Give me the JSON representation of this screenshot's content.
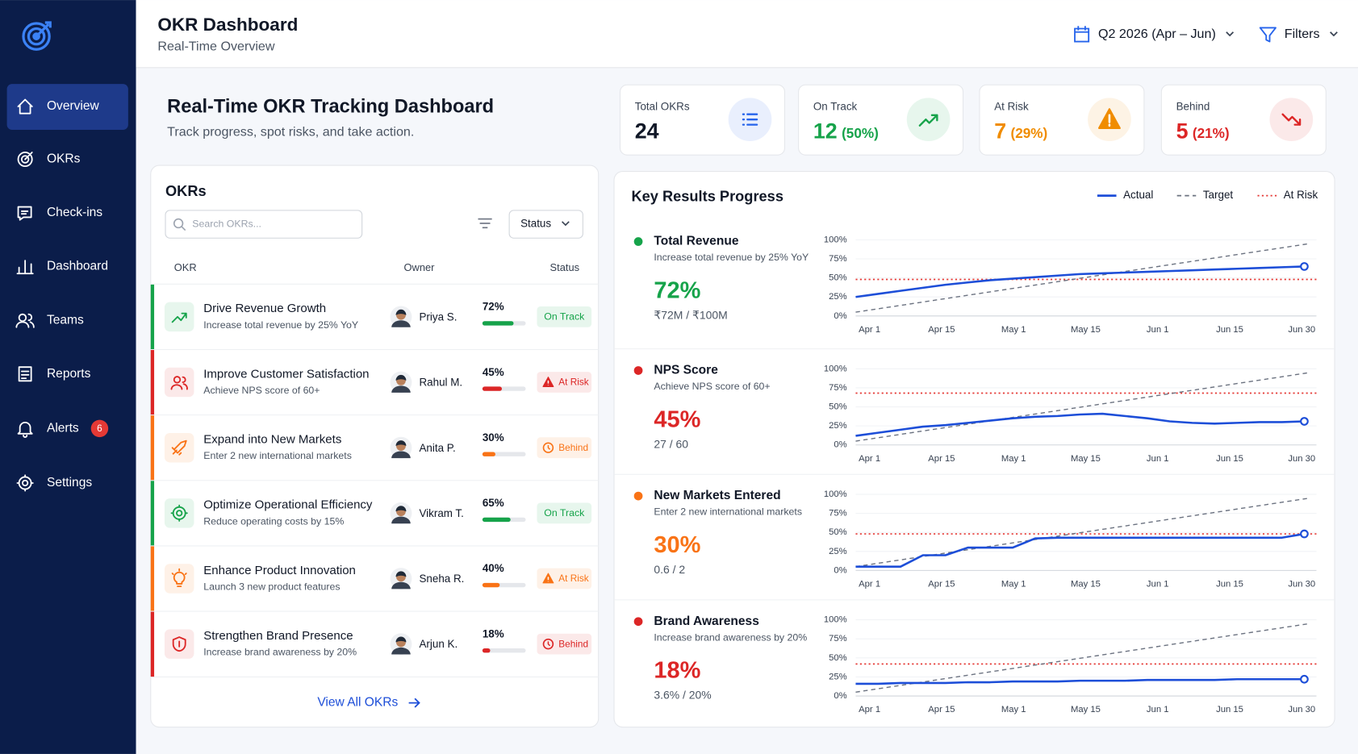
{
  "sidebar": {
    "nav": [
      {
        "label": "Overview"
      },
      {
        "label": "OKRs"
      },
      {
        "label": "Check-ins"
      },
      {
        "label": "Dashboard"
      },
      {
        "label": "Teams"
      },
      {
        "label": "Reports"
      },
      {
        "label": "Alerts",
        "badge": 6
      },
      {
        "label": "Settings"
      }
    ]
  },
  "header": {
    "title": "OKR Dashboard",
    "subtitle": "Real-Time Overview",
    "period": "Q2 2026 (Apr – Jun)",
    "filters": "Filters"
  },
  "hero": {
    "title": "Real-Time OKR Tracking Dashboard",
    "subtitle": "Track progress, spot risks, and take action."
  },
  "kpis": [
    {
      "label": "Total OKRs",
      "value": 24,
      "color": "#2563eb"
    },
    {
      "label": "On Track",
      "value": 12,
      "share": "(50%)",
      "color": "#16a34a"
    },
    {
      "label": "At Risk",
      "value": 7,
      "share": "(29%)",
      "color": "#f08c00"
    },
    {
      "label": "Behind",
      "value": 5,
      "share": "(21%)",
      "color": "#dc2626"
    }
  ],
  "okrs": {
    "title": "OKRs",
    "search_placeholder": "Search OKRs...",
    "status_filter": "Status",
    "columns": [
      "OKR",
      "Owner",
      "Status"
    ],
    "rows": [
      {
        "title": "Drive Revenue Growth",
        "subtitle": "Increase total revenue by 25% YoY",
        "owner": "Priya S.",
        "progress": 72,
        "progress_label": "72%",
        "status": "On Track",
        "color": "#16a34a"
      },
      {
        "title": "Improve Customer Satisfaction",
        "subtitle": "Achieve NPS score of 60+",
        "owner": "Rahul M.",
        "progress": 45,
        "progress_label": "45%",
        "status": "At Risk",
        "color": "#dc2626"
      },
      {
        "title": "Expand into New Markets",
        "subtitle": "Enter 2 new international markets",
        "owner": "Anita P.",
        "progress": 30,
        "progress_label": "30%",
        "status": "Behind",
        "color": "#f97316"
      },
      {
        "title": "Optimize Operational Efficiency",
        "subtitle": "Reduce operating costs by 15%",
        "owner": "Vikram T.",
        "progress": 65,
        "progress_label": "65%",
        "status": "On Track",
        "color": "#16a34a"
      },
      {
        "title": "Enhance Product Innovation",
        "subtitle": "Launch 3 new product features",
        "owner": "Sneha R.",
        "progress": 40,
        "progress_label": "40%",
        "status": "At Risk",
        "color": "#f97316"
      },
      {
        "title": "Strengthen Brand Presence",
        "subtitle": "Increase brand awareness by 20%",
        "owner": "Arjun K.",
        "progress": 18,
        "progress_label": "18%",
        "status": "Behind",
        "color": "#dc2626"
      }
    ],
    "view_all": "View All OKRs"
  },
  "key_results": {
    "title": "Key Results Progress",
    "legend": [
      {
        "name": "Actual",
        "color": "#1d4ed8"
      },
      {
        "name": "Target",
        "color": "#6b7280"
      },
      {
        "name": "At Risk",
        "color": "#e53935"
      }
    ],
    "ylim": [
      0,
      100
    ],
    "yticks": [
      {
        "value": 0,
        "label": "0%"
      },
      {
        "value": 25,
        "label": "25%"
      },
      {
        "value": 50,
        "label": "50%"
      },
      {
        "value": 75,
        "label": "75%"
      },
      {
        "value": 100,
        "label": "100%"
      }
    ],
    "x_labels": [
      "Apr 1",
      "Apr 15",
      "May 1",
      "May 15",
      "Jun 1",
      "Jun 15",
      "Jun 30"
    ],
    "items": [
      {
        "name": "Total Revenue",
        "description": "Increase total revenue by 25% YoY",
        "value": 72,
        "value_label": "72%",
        "detail": "₹72M / ₹100M",
        "color": "#16a34a",
        "actual": [
          25,
          29,
          33,
          37,
          41,
          44,
          47,
          49,
          51,
          53,
          55,
          56,
          57,
          58,
          59,
          60,
          61,
          62,
          63,
          64,
          65
        ],
        "target": [
          5,
          95
        ],
        "at_risk": 48
      },
      {
        "name": "NPS Score",
        "description": "Achieve NPS score of 60+",
        "value": 45,
        "value_label": "45%",
        "detail": "27 / 60",
        "color": "#dc2626",
        "actual": [
          12,
          16,
          20,
          24,
          26,
          29,
          32,
          35,
          37,
          38,
          40,
          41,
          38,
          35,
          31,
          29,
          28,
          29,
          30,
          30,
          31
        ],
        "target": [
          5,
          95
        ],
        "at_risk": 68
      },
      {
        "name": "New Markets Entered",
        "description": "Enter 2 new international markets",
        "value": 30,
        "value_label": "30%",
        "detail": "0.6 / 2",
        "color": "#f97316",
        "actual": [
          5,
          5,
          5,
          20,
          20,
          30,
          30,
          30,
          42,
          43,
          43,
          43,
          43,
          43,
          43,
          43,
          43,
          43,
          43,
          43,
          48
        ],
        "target": [
          5,
          95
        ],
        "at_risk": 48
      },
      {
        "name": "Brand Awareness",
        "description": "Increase brand awareness by 20%",
        "value": 18,
        "value_label": "18%",
        "detail": "3.6% / 20%",
        "color": "#dc2626",
        "actual": [
          16,
          16,
          17,
          17,
          17,
          18,
          18,
          19,
          19,
          19,
          20,
          20,
          20,
          21,
          21,
          21,
          21,
          22,
          22,
          22,
          22
        ],
        "target": [
          5,
          95
        ],
        "at_risk": 42
      }
    ]
  }
}
